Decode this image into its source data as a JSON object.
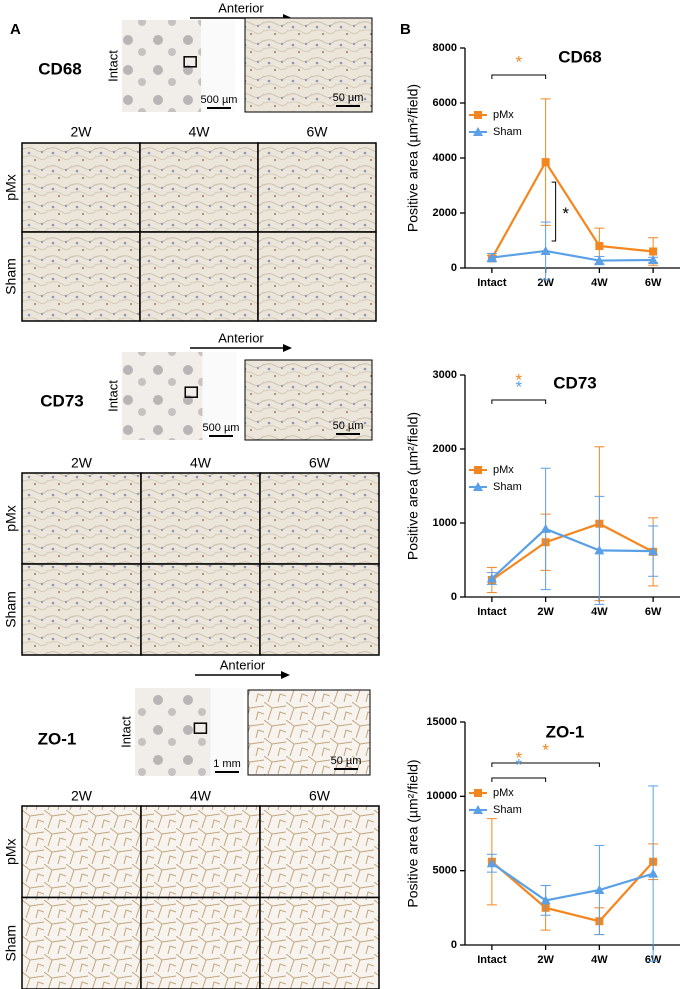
{
  "panel_a": {
    "label": "A",
    "sections": [
      {
        "marker": "CD68",
        "intact": "Intact",
        "direction": "Anterior",
        "scale_overview": "500 µm",
        "scale_zoom": "50 µm",
        "columns": [
          "2W",
          "4W",
          "6W"
        ],
        "rows": [
          "pMx",
          "Sham"
        ]
      },
      {
        "marker": "CD73",
        "intact": "Intact",
        "direction": "Anterior",
        "scale_overview": "500 µm",
        "scale_zoom": "50 µm",
        "columns": [
          "2W",
          "4W",
          "6W"
        ],
        "rows": [
          "pMx",
          "Sham"
        ]
      },
      {
        "marker": "ZO-1",
        "intact": "Intact",
        "direction": "Anterior",
        "scale_overview": "1 mm",
        "scale_zoom": "50 µm",
        "columns": [
          "2W",
          "4W",
          "6W"
        ],
        "rows": [
          "pMx",
          "Sham"
        ]
      }
    ]
  },
  "panel_b": {
    "label": "B"
  },
  "chart_data": [
    {
      "type": "line",
      "title": "CD68",
      "y_label": "Positive area (µm²/field)",
      "categories": [
        "Intact",
        "2W",
        "4W",
        "6W"
      ],
      "ylim": [
        0,
        8000
      ],
      "yticks": [
        0,
        2000,
        4000,
        6000,
        8000
      ],
      "legend": "upper left",
      "series": [
        {
          "name": "pMx",
          "color": "#f5861f",
          "marker": "square",
          "values": [
            350,
            3850,
            800,
            600
          ],
          "errors": [
            100,
            2300,
            650,
            500
          ]
        },
        {
          "name": "Sham",
          "color": "#5aa0e6",
          "marker": "triangle",
          "values": [
            380,
            620,
            270,
            290
          ],
          "errors": [
            150,
            1050,
            150,
            100
          ]
        }
      ],
      "significance": [
        {
          "between": [
            "Intact",
            "2W"
          ],
          "marks": [
            {
              "label": "*",
              "color": "#f5861f"
            }
          ]
        },
        {
          "series": [
            "pMx",
            "Sham"
          ],
          "at": "2W",
          "marks": [
            {
              "label": "*",
              "color": "#000000"
            }
          ]
        }
      ]
    },
    {
      "type": "line",
      "title": "CD73",
      "y_label": "Positive area (µm²/field)",
      "categories": [
        "Intact",
        "2W",
        "4W",
        "6W"
      ],
      "ylim": [
        0,
        3000
      ],
      "yticks": [
        0,
        1000,
        2000,
        3000
      ],
      "legend": "upper left",
      "series": [
        {
          "name": "pMx",
          "color": "#f5861f",
          "marker": "square",
          "values": [
            230,
            740,
            990,
            610
          ],
          "errors": [
            170,
            380,
            1040,
            460
          ]
        },
        {
          "name": "Sham",
          "color": "#5aa0e6",
          "marker": "triangle",
          "values": [
            250,
            920,
            630,
            620
          ],
          "errors": [
            80,
            820,
            730,
            340
          ]
        }
      ],
      "significance": [
        {
          "between": [
            "Intact",
            "2W"
          ],
          "marks": [
            {
              "label": "*",
              "color": "#f5861f"
            },
            {
              "label": "*",
              "color": "#5aa0e6"
            }
          ]
        }
      ]
    },
    {
      "type": "line",
      "title": "ZO-1",
      "y_label": "Positive area (µm²/field)",
      "categories": [
        "Intact",
        "2W",
        "4W",
        "6W"
      ],
      "ylim": [
        0,
        15000
      ],
      "yticks": [
        0,
        5000,
        10000,
        15000
      ],
      "legend": "upper left",
      "series": [
        {
          "name": "pMx",
          "color": "#f5861f",
          "marker": "square",
          "values": [
            5600,
            2500,
            1600,
            5600
          ],
          "errors": [
            2900,
            1500,
            900,
            1200
          ]
        },
        {
          "name": "Sham",
          "color": "#5aa0e6",
          "marker": "triangle",
          "values": [
            5500,
            3000,
            3700,
            4800
          ],
          "errors": [
            600,
            1000,
            3000,
            5900
          ]
        }
      ],
      "significance": [
        {
          "between": [
            "Intact",
            "4W"
          ],
          "marks": [
            {
              "label": "*",
              "color": "#f5861f"
            }
          ]
        },
        {
          "between": [
            "Intact",
            "2W"
          ],
          "marks": [
            {
              "label": "*",
              "color": "#f5861f"
            },
            {
              "label": "*",
              "color": "#5aa0e6"
            }
          ]
        }
      ]
    }
  ]
}
